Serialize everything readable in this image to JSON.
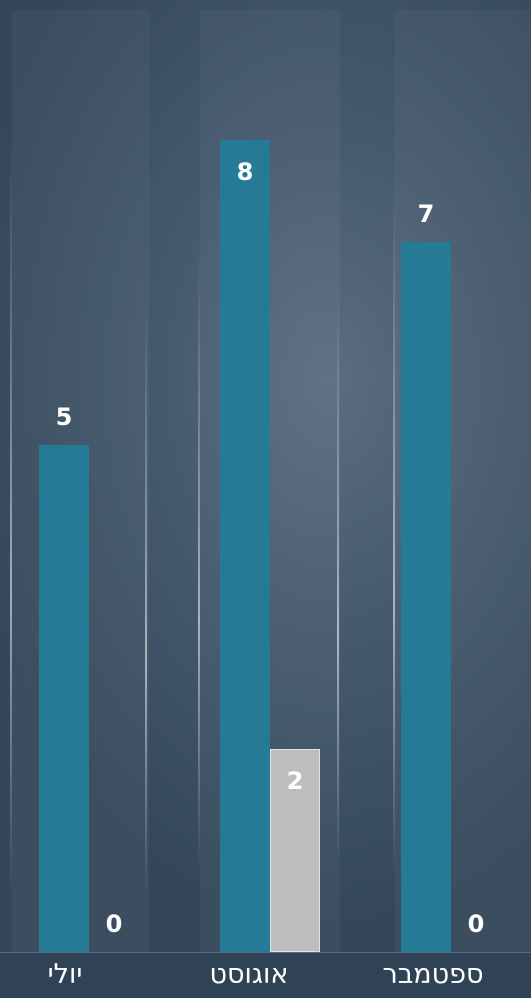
{
  "chart_data": {
    "type": "bar",
    "categories": [
      "יולי",
      "אוגוסט",
      "ספטמבר"
    ],
    "series": [
      {
        "values": [
          5,
          8,
          7
        ],
        "color": "#257a96"
      },
      {
        "values": [
          0,
          2,
          0
        ],
        "color": "#bdbdc0"
      }
    ],
    "ylim": [
      0,
      8
    ],
    "grid": false,
    "legend": "none",
    "label_colors": [
      "#ffffff",
      "#ffffff"
    ]
  }
}
